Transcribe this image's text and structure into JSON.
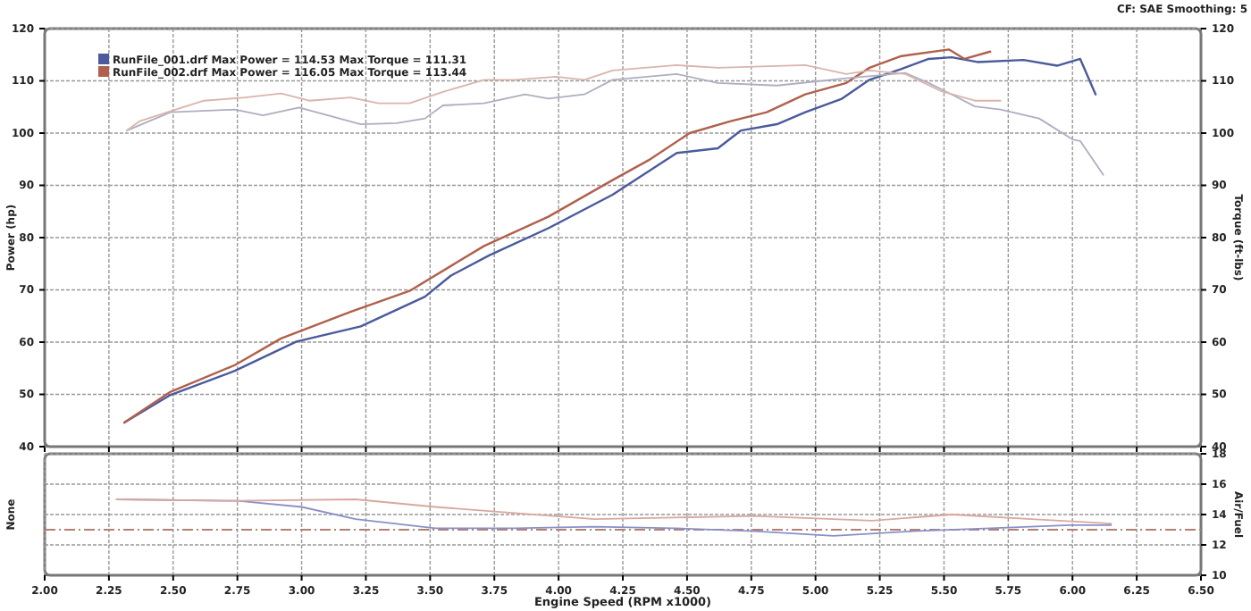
{
  "chart_data": [
    {
      "type": "line",
      "ylabel": "Power (hp)",
      "y2label": "Torque (ft-lbs)",
      "annotations": [
        "CF: SAE  Smoothing: 5"
      ],
      "xlim": [
        2,
        6.5
      ],
      "xticks": [
        2,
        2.25,
        2.5,
        2.75,
        3,
        3.25,
        3.5,
        3.75,
        4,
        4.25,
        4.5,
        4.75,
        5,
        5.25,
        5.5,
        5.75,
        6,
        6.25,
        6.5
      ],
      "ylim": [
        40,
        120
      ],
      "yticks": [
        40,
        50,
        60,
        70,
        80,
        90,
        100,
        110,
        120
      ],
      "y2lim": [
        40,
        120
      ],
      "y2ticks": [
        40,
        50,
        60,
        70,
        80,
        90,
        100,
        110,
        120
      ],
      "tick_labels": "y",
      "grid": true,
      "legend": "top left",
      "series": [
        {
          "name": "RunFile_001.drf Max Power = 114.53 Max Torque = 111.31",
          "color": "#4a5a9c",
          "x": [
            2.31,
            2.49,
            2.74,
            2.98,
            3.23,
            3.48,
            3.58,
            3.73,
            3.96,
            4.21,
            4.46,
            4.62,
            4.71,
            4.85,
            4.96,
            5.1,
            5.21,
            5.33,
            5.44,
            5.53,
            5.63,
            5.81,
            5.94,
            6.03,
            6.09
          ],
          "values": [
            44.6,
            49.9,
            54.5,
            60.1,
            63,
            68.7,
            72.7,
            76.6,
            81.8,
            88.2,
            96.2,
            97.1,
            100.5,
            101.7,
            104,
            106.5,
            110.2,
            112.2,
            114.2,
            114.5,
            113.6,
            114,
            112.9,
            114.2,
            107.4
          ]
        },
        {
          "name": "RunFile_002.drf Max Power = 116.05 Max Torque = 113.44",
          "color": "#b0604c",
          "x": [
            2.31,
            2.49,
            2.74,
            2.92,
            3.19,
            3.42,
            3.71,
            3.96,
            4.21,
            4.35,
            4.51,
            4.67,
            4.81,
            4.96,
            5.12,
            5.21,
            5.33,
            5.52,
            5.58,
            5.68
          ],
          "values": [
            44.6,
            50.5,
            55.6,
            60.7,
            65.8,
            69.8,
            78.4,
            84,
            91,
            94.8,
            100,
            102.3,
            104,
            107.4,
            109.6,
            112.5,
            114.7,
            116,
            114.2,
            115.6
          ]
        },
        {
          "axis": "y2",
          "color": "#aeaec0",
          "x": [
            2.32,
            2.49,
            2.74,
            2.85,
            2.99,
            3.23,
            3.37,
            3.48,
            3.55,
            3.71,
            3.87,
            3.96,
            4.1,
            4.21,
            4.46,
            4.62,
            4.85,
            5.12,
            5.35,
            5.44,
            5.53,
            5.62,
            5.72,
            5.87,
            6,
            6.03,
            6.12
          ],
          "values": [
            100.5,
            104,
            104.5,
            103.4,
            104.9,
            101.7,
            101.9,
            102.8,
            105.3,
            105.7,
            107.4,
            106.6,
            107.4,
            110.2,
            111.3,
            109.6,
            109.1,
            110.5,
            111.5,
            109.6,
            107.4,
            105.1,
            104.5,
            102.8,
            98.8,
            98.5,
            92
          ]
        },
        {
          "axis": "y2",
          "color": "#dab4ac",
          "x": [
            2.32,
            2.37,
            2.51,
            2.62,
            2.78,
            2.92,
            3.03,
            3.19,
            3.3,
            3.42,
            3.55,
            3.71,
            3.83,
            3.99,
            4.1,
            4.21,
            4.46,
            4.62,
            4.96,
            5.12,
            5.21,
            5.35,
            5.49,
            5.62,
            5.72
          ],
          "values": [
            100.5,
            102.3,
            104.5,
            106.2,
            106.8,
            107.6,
            106.2,
            106.8,
            105.7,
            105.7,
            107.9,
            110.2,
            110.2,
            110.8,
            110.2,
            112,
            113,
            112.5,
            113,
            111.3,
            112,
            111.3,
            108,
            106.2,
            106.2
          ]
        }
      ]
    },
    {
      "type": "line",
      "xlabel": "Engine Speed (RPM x1000)",
      "ylabel": "None",
      "y2label": "Air/Fuel",
      "xlim": [
        2,
        6.5
      ],
      "xticks": [
        {
          "value": 2,
          "label": "2.00"
        },
        {
          "value": 2.25,
          "label": "2.25"
        },
        {
          "value": 2.5,
          "label": "2.50"
        },
        {
          "value": 2.75,
          "label": "2.75"
        },
        {
          "value": 3,
          "label": "3.00"
        },
        {
          "value": 3.25,
          "label": "3.25"
        },
        {
          "value": 3.5,
          "label": "3.50"
        },
        {
          "value": 3.75,
          "label": "3.75"
        },
        {
          "value": 4,
          "label": "4.00"
        },
        {
          "value": 4.25,
          "label": "4.25"
        },
        {
          "value": 4.5,
          "label": "4.50"
        },
        {
          "value": 4.75,
          "label": "4.75"
        },
        {
          "value": 5,
          "label": "5.00"
        },
        {
          "value": 5.25,
          "label": "5.25"
        },
        {
          "value": 5.5,
          "label": "5.50"
        },
        {
          "value": 5.75,
          "label": "5.75"
        },
        {
          "value": 6,
          "label": "6.00"
        },
        {
          "value": 6.25,
          "label": "6.25"
        },
        {
          "value": 6.5,
          "label": "6.50"
        }
      ],
      "y2lim": [
        10,
        18
      ],
      "y2ticks": [
        10,
        12,
        14,
        16,
        18
      ],
      "grid": true,
      "ref_lines": [
        {
          "axis": "y2",
          "value": 13,
          "color": "#b08070",
          "line_style": "dashed"
        }
      ],
      "series": [
        {
          "axis": "y2",
          "color": "#8a90c8",
          "x": [
            2.28,
            2.75,
            3,
            3.21,
            3.52,
            3.83,
            4.14,
            4.45,
            4.76,
            5.07,
            5.38,
            5.68,
            5.99,
            6.15
          ],
          "values": [
            15,
            14.9,
            14.5,
            13.7,
            13.1,
            13.1,
            13.2,
            13.1,
            12.9,
            12.6,
            12.9,
            13.1,
            13.3,
            13.3
          ]
        },
        {
          "axis": "y2",
          "color": "#d8a8a0",
          "x": [
            2.28,
            2.75,
            3.21,
            3.52,
            3.83,
            4.14,
            4.45,
            4.76,
            5.07,
            5.22,
            5.53,
            5.84,
            6.15
          ],
          "values": [
            15,
            14.9,
            15,
            14.5,
            14.1,
            13.7,
            13.8,
            13.9,
            13.7,
            13.6,
            14,
            13.7,
            13.4
          ]
        }
      ]
    }
  ]
}
